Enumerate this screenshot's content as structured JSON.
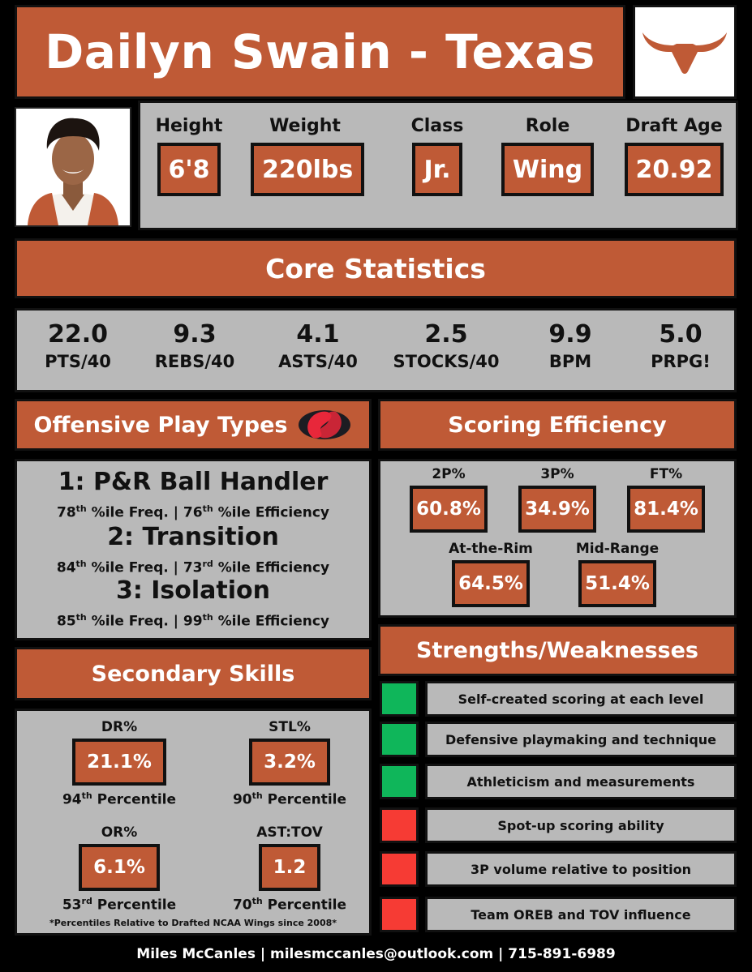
{
  "header": {
    "title": "Dailyn Swain - Texas"
  },
  "bio": {
    "items": [
      {
        "label": "Height",
        "value": "6'8"
      },
      {
        "label": "Weight",
        "value": "220lbs"
      },
      {
        "label": "Class",
        "value": "Jr."
      },
      {
        "label": "Role",
        "value": "Wing"
      },
      {
        "label": "Draft Age",
        "value": "20.92"
      }
    ]
  },
  "core": {
    "title": "Core Statistics",
    "stats": [
      {
        "value": "22.0",
        "label": "PTS/40"
      },
      {
        "value": "9.3",
        "label": "REBS/40"
      },
      {
        "value": "4.1",
        "label": "ASTS/40"
      },
      {
        "value": "2.5",
        "label": "STOCKS/40"
      },
      {
        "value": "9.9",
        "label": "BPM"
      },
      {
        "value": "5.0",
        "label": "PRPG!"
      }
    ]
  },
  "offense": {
    "title": "Offensive Play Types",
    "plays": [
      {
        "title": "1: P&R Ball Handler",
        "freq_num": "78",
        "freq_sup": "th",
        "freq_text": " %ile Freq. | ",
        "eff_num": "76",
        "eff_sup": "th",
        "eff_text": " %ile Efficiency"
      },
      {
        "title": "2: Transition",
        "freq_num": "84",
        "freq_sup": "th",
        "freq_text": " %ile Freq. | ",
        "eff_num": "73",
        "eff_sup": "rd",
        "eff_text": " %ile Efficiency"
      },
      {
        "title": "3: Isolation",
        "freq_num": "85",
        "freq_sup": "th",
        "freq_text": " %ile Freq. | ",
        "eff_num": "99",
        "eff_sup": "th",
        "eff_text": " %ile Efficiency"
      }
    ]
  },
  "efficiency": {
    "title": "Scoring Efficiency",
    "items": [
      {
        "label": "2P%",
        "value": "60.8%"
      },
      {
        "label": "3P%",
        "value": "34.9%"
      },
      {
        "label": "FT%",
        "value": "81.4%"
      },
      {
        "label": "At-the-Rim",
        "value": "64.5%"
      },
      {
        "label": "Mid-Range",
        "value": "51.4%"
      }
    ]
  },
  "secondary": {
    "title": "Secondary Skills",
    "items": [
      {
        "label": "DR%",
        "value": "21.1%",
        "pct_num": "94",
        "pct_sup": "th",
        "pct_text": " Percentile"
      },
      {
        "label": "STL%",
        "value": "3.2%",
        "pct_num": "90",
        "pct_sup": "th",
        "pct_text": " Percentile"
      },
      {
        "label": "OR%",
        "value": "6.1%",
        "pct_num": "53",
        "pct_sup": "rd",
        "pct_text": " Percentile"
      },
      {
        "label": "AST:TOV",
        "value": "1.2",
        "pct_num": "70",
        "pct_sup": "th",
        "pct_text": " Percentile"
      }
    ],
    "note": "*Percentiles Relative to Drafted NCAA Wings since 2008*"
  },
  "strengths_weaknesses": {
    "title": "Strengths/Weaknesses",
    "strengths": [
      "Self-created scoring at each level",
      "Defensive playmaking and technique",
      "Athleticism and measurements"
    ],
    "weaknesses": [
      "Spot-up scoring ability",
      "3P volume relative to position",
      "Team OREB and TOV influence"
    ],
    "colors": {
      "strength": "#0fb65a",
      "weakness": "#f63b34"
    }
  },
  "footer": {
    "text": "Miles McCanles | milesmccanles@outlook.com | 715-891-6989"
  },
  "colors": {
    "accent": "#bf5a36",
    "panel": "#b9b9b9",
    "background": "#000000"
  }
}
